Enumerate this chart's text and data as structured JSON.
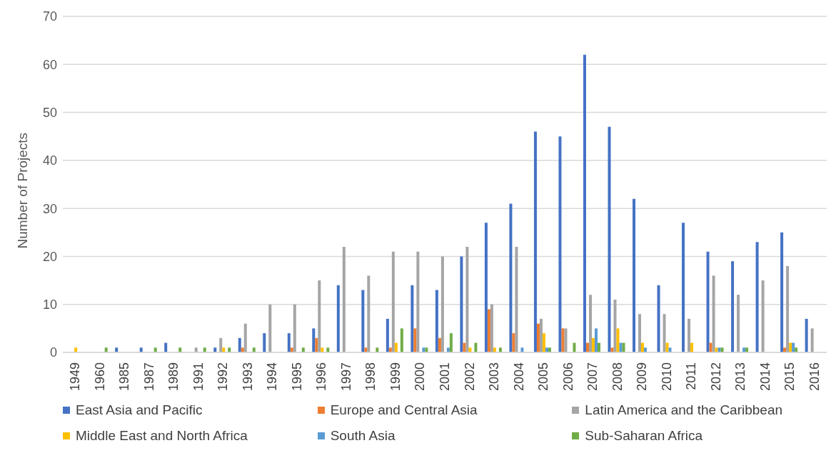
{
  "chart_data": {
    "type": "bar",
    "ylabel": "Number of Projects",
    "categories": [
      "1949",
      "1960",
      "1985",
      "1987",
      "1989",
      "1991",
      "1992",
      "1993",
      "1994",
      "1995",
      "1996",
      "1997",
      "1998",
      "1999",
      "2000",
      "2001",
      "2002",
      "2003",
      "2004",
      "2005",
      "2006",
      "2007",
      "2008",
      "2009",
      "2010",
      "2011",
      "2012",
      "2013",
      "2014",
      "2015",
      "2016"
    ],
    "series": [
      {
        "name": "East Asia and Pacific",
        "color": "#4472c4",
        "values": [
          null,
          null,
          1,
          1,
          2,
          null,
          1,
          3,
          4,
          4,
          5,
          14,
          13,
          7,
          14,
          13,
          20,
          27,
          31,
          46,
          45,
          62,
          47,
          32,
          14,
          27,
          21,
          19,
          23,
          25,
          7
        ]
      },
      {
        "name": "Europe and Central Asia",
        "color": "#ed7d31",
        "values": [
          null,
          null,
          null,
          null,
          null,
          null,
          null,
          1,
          null,
          1,
          3,
          null,
          1,
          1,
          5,
          3,
          2,
          9,
          4,
          6,
          5,
          2,
          1,
          null,
          null,
          null,
          2,
          null,
          null,
          1,
          null
        ]
      },
      {
        "name": "Latin America and the Caribbean",
        "color": "#a5a5a5",
        "values": [
          null,
          null,
          null,
          null,
          null,
          1,
          3,
          6,
          10,
          10,
          15,
          22,
          16,
          21,
          21,
          20,
          22,
          10,
          22,
          7,
          5,
          12,
          11,
          8,
          8,
          7,
          16,
          12,
          15,
          18,
          5
        ]
      },
      {
        "name": "Middle East and North Africa",
        "color": "#ffc000",
        "values": [
          1,
          null,
          null,
          null,
          null,
          null,
          1,
          null,
          null,
          null,
          1,
          null,
          null,
          2,
          null,
          null,
          1,
          1,
          null,
          4,
          null,
          3,
          5,
          2,
          2,
          2,
          1,
          null,
          null,
          2,
          null
        ]
      },
      {
        "name": "South Asia",
        "color": "#5b9bd5",
        "values": [
          null,
          null,
          null,
          null,
          null,
          null,
          null,
          null,
          null,
          null,
          null,
          null,
          null,
          null,
          1,
          1,
          null,
          null,
          1,
          1,
          null,
          5,
          2,
          1,
          1,
          null,
          1,
          1,
          null,
          2,
          null
        ]
      },
      {
        "name": "Sub-Saharan Africa",
        "color": "#70ad47",
        "values": [
          null,
          1,
          null,
          1,
          1,
          1,
          1,
          1,
          null,
          1,
          1,
          null,
          1,
          5,
          1,
          4,
          2,
          1,
          null,
          1,
          2,
          2,
          2,
          null,
          null,
          null,
          1,
          1,
          null,
          1,
          null
        ]
      }
    ],
    "ylim": [
      0,
      70
    ],
    "yticks": [
      0,
      10,
      20,
      30,
      40,
      50,
      60,
      70
    ],
    "grid": "y",
    "legend": "bottom"
  }
}
